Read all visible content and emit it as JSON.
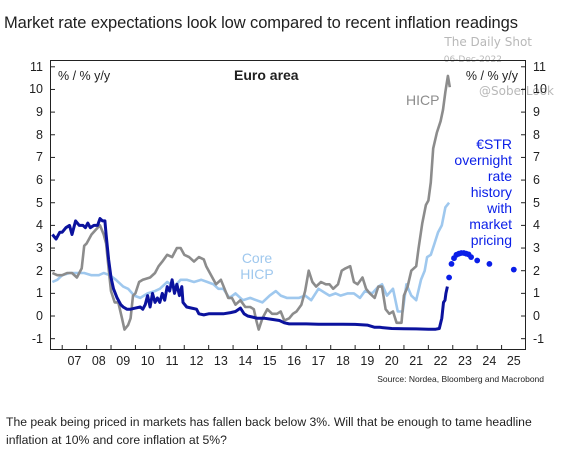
{
  "headline": "Market rate expectations look low compared to recent inflation readings",
  "watermark": {
    "site": "The Daily Shot",
    "date": "06-Dec-2022",
    "handle": "@SoberLook"
  },
  "source": "Source: Nordea, Bloomberg and Macrobond",
  "footer": "The peak being priced in markets has fallen back below 3%. Will that be enough to tame headline inflation at 10% and core inflation at 5%?",
  "colors": {
    "hicp": "#8c8c8c",
    "core": "#9fc8ee",
    "estr": "#0b129e",
    "pricing": "#0a1ee8",
    "text": "#1f1f1f"
  },
  "chart_data": {
    "type": "line",
    "title": "Euro area",
    "left_axis_label": "% / % y/y",
    "right_axis_label": "% / % y/y",
    "ylim": [
      -1.5,
      11.3
    ],
    "y_ticks": [
      -1,
      0,
      1,
      2,
      3,
      4,
      5,
      6,
      7,
      8,
      9,
      10,
      11
    ],
    "xlim": [
      2006.5,
      2026.0
    ],
    "x_ticks": [
      "07",
      "08",
      "09",
      "10",
      "11",
      "12",
      "13",
      "14",
      "15",
      "16",
      "17",
      "18",
      "19",
      "20",
      "21",
      "22",
      "23",
      "24",
      "25"
    ],
    "grid": false,
    "annotations": [
      {
        "series": "HICP",
        "text": "HICP",
        "color": "#8c8c8c"
      },
      {
        "series": "Core HICP",
        "lines": [
          "Core",
          "HICP"
        ],
        "color": "#9fc8ee"
      },
      {
        "series": "€STR",
        "lines": [
          "€STR",
          "overnight",
          "rate",
          "history",
          "with",
          "market",
          "pricing"
        ],
        "color": "#0a1ee8"
      }
    ],
    "series": [
      {
        "name": "HICP",
        "points": [
          [
            2006.6,
            1.9
          ],
          [
            2006.8,
            1.8
          ],
          [
            2007.0,
            1.8
          ],
          [
            2007.2,
            1.9
          ],
          [
            2007.4,
            1.9
          ],
          [
            2007.6,
            1.7
          ],
          [
            2007.8,
            2.1
          ],
          [
            2007.9,
            3.1
          ],
          [
            2008.0,
            3.2
          ],
          [
            2008.2,
            3.6
          ],
          [
            2008.45,
            3.9
          ],
          [
            2008.55,
            4.0
          ],
          [
            2008.7,
            3.6
          ],
          [
            2008.8,
            3.2
          ],
          [
            2008.9,
            2.1
          ],
          [
            2009.0,
            1.1
          ],
          [
            2009.15,
            0.6
          ],
          [
            2009.3,
            0.6
          ],
          [
            2009.45,
            -0.1
          ],
          [
            2009.55,
            -0.6
          ],
          [
            2009.7,
            -0.4
          ],
          [
            2009.8,
            -0.1
          ],
          [
            2009.9,
            0.9
          ],
          [
            2010.0,
            1.0
          ],
          [
            2010.15,
            1.5
          ],
          [
            2010.3,
            1.6
          ],
          [
            2010.6,
            1.7
          ],
          [
            2010.8,
            1.9
          ],
          [
            2010.95,
            2.2
          ],
          [
            2011.1,
            2.4
          ],
          [
            2011.3,
            2.7
          ],
          [
            2011.5,
            2.6
          ],
          [
            2011.7,
            3.0
          ],
          [
            2011.85,
            3.0
          ],
          [
            2012.0,
            2.7
          ],
          [
            2012.2,
            2.6
          ],
          [
            2012.4,
            2.4
          ],
          [
            2012.6,
            2.6
          ],
          [
            2012.8,
            2.5
          ],
          [
            2012.9,
            2.2
          ],
          [
            2013.1,
            1.8
          ],
          [
            2013.3,
            1.4
          ],
          [
            2013.5,
            1.6
          ],
          [
            2013.8,
            0.8
          ],
          [
            2013.95,
            0.8
          ],
          [
            2014.1,
            0.5
          ],
          [
            2014.3,
            0.7
          ],
          [
            2014.5,
            0.4
          ],
          [
            2014.7,
            0.4
          ],
          [
            2014.85,
            0.3
          ],
          [
            2014.95,
            -0.2
          ],
          [
            2015.05,
            -0.6
          ],
          [
            2015.2,
            -0.1
          ],
          [
            2015.4,
            0.3
          ],
          [
            2015.6,
            0.1
          ],
          [
            2015.8,
            0.1
          ],
          [
            2015.95,
            0.2
          ],
          [
            2016.1,
            -0.2
          ],
          [
            2016.3,
            -0.1
          ],
          [
            2016.45,
            0.1
          ],
          [
            2016.6,
            0.2
          ],
          [
            2016.8,
            0.5
          ],
          [
            2016.95,
            1.1
          ],
          [
            2017.1,
            2.0
          ],
          [
            2017.25,
            1.5
          ],
          [
            2017.4,
            1.3
          ],
          [
            2017.6,
            1.5
          ],
          [
            2017.8,
            1.4
          ],
          [
            2017.95,
            1.4
          ],
          [
            2018.1,
            1.2
          ],
          [
            2018.3,
            1.4
          ],
          [
            2018.45,
            2.0
          ],
          [
            2018.6,
            2.1
          ],
          [
            2018.8,
            2.2
          ],
          [
            2018.95,
            1.5
          ],
          [
            2019.1,
            1.4
          ],
          [
            2019.3,
            1.7
          ],
          [
            2019.45,
            1.2
          ],
          [
            2019.6,
            1.0
          ],
          [
            2019.8,
            0.8
          ],
          [
            2019.95,
            1.3
          ],
          [
            2020.1,
            1.3
          ],
          [
            2020.25,
            0.3
          ],
          [
            2020.4,
            0.1
          ],
          [
            2020.55,
            0.2
          ],
          [
            2020.7,
            -0.3
          ],
          [
            2020.9,
            -0.3
          ],
          [
            2021.0,
            0.9
          ],
          [
            2021.15,
            1.3
          ],
          [
            2021.3,
            2.0
          ],
          [
            2021.5,
            2.2
          ],
          [
            2021.6,
            3.0
          ],
          [
            2021.75,
            4.1
          ],
          [
            2021.9,
            4.9
          ],
          [
            2022.0,
            5.1
          ],
          [
            2022.1,
            5.9
          ],
          [
            2022.2,
            7.4
          ],
          [
            2022.35,
            8.1
          ],
          [
            2022.5,
            8.6
          ],
          [
            2022.6,
            9.1
          ],
          [
            2022.7,
            9.9
          ],
          [
            2022.8,
            10.6
          ],
          [
            2022.88,
            10.1
          ]
        ]
      },
      {
        "name": "Core HICP",
        "points": [
          [
            2006.6,
            1.5
          ],
          [
            2006.8,
            1.6
          ],
          [
            2007.0,
            1.8
          ],
          [
            2007.3,
            1.9
          ],
          [
            2007.6,
            1.9
          ],
          [
            2007.9,
            1.9
          ],
          [
            2008.2,
            1.8
          ],
          [
            2008.5,
            1.8
          ],
          [
            2008.7,
            1.9
          ],
          [
            2008.95,
            1.8
          ],
          [
            2009.2,
            1.6
          ],
          [
            2009.5,
            1.3
          ],
          [
            2009.7,
            1.2
          ],
          [
            2009.95,
            0.9
          ],
          [
            2010.2,
            0.8
          ],
          [
            2010.5,
            1.0
          ],
          [
            2010.8,
            1.1
          ],
          [
            2011.0,
            1.2
          ],
          [
            2011.3,
            1.5
          ],
          [
            2011.6,
            1.3
          ],
          [
            2011.85,
            1.6
          ],
          [
            2012.1,
            1.6
          ],
          [
            2012.4,
            1.5
          ],
          [
            2012.7,
            1.6
          ],
          [
            2012.95,
            1.5
          ],
          [
            2013.2,
            1.4
          ],
          [
            2013.4,
            1.2
          ],
          [
            2013.6,
            1.2
          ],
          [
            2013.85,
            0.8
          ],
          [
            2014.1,
            1.0
          ],
          [
            2014.4,
            0.7
          ],
          [
            2014.7,
            0.8
          ],
          [
            2014.95,
            0.7
          ],
          [
            2015.2,
            0.6
          ],
          [
            2015.5,
            0.9
          ],
          [
            2015.75,
            1.1
          ],
          [
            2015.95,
            0.9
          ],
          [
            2016.2,
            0.8
          ],
          [
            2016.5,
            0.8
          ],
          [
            2016.7,
            0.8
          ],
          [
            2016.95,
            0.9
          ],
          [
            2017.2,
            0.7
          ],
          [
            2017.5,
            1.2
          ],
          [
            2017.8,
            1.0
          ],
          [
            2017.95,
            0.9
          ],
          [
            2018.2,
            1.0
          ],
          [
            2018.4,
            0.9
          ],
          [
            2018.7,
            1.0
          ],
          [
            2018.95,
            1.0
          ],
          [
            2019.2,
            0.8
          ],
          [
            2019.4,
            1.1
          ],
          [
            2019.7,
            1.0
          ],
          [
            2019.95,
            1.3
          ],
          [
            2020.1,
            1.4
          ],
          [
            2020.3,
            0.9
          ],
          [
            2020.55,
            1.2
          ],
          [
            2020.75,
            0.2
          ],
          [
            2020.95,
            0.2
          ],
          [
            2021.1,
            1.4
          ],
          [
            2021.3,
            0.9
          ],
          [
            2021.5,
            0.7
          ],
          [
            2021.7,
            1.6
          ],
          [
            2021.85,
            2.0
          ],
          [
            2021.95,
            2.6
          ],
          [
            2022.1,
            2.7
          ],
          [
            2022.25,
            3.2
          ],
          [
            2022.4,
            3.7
          ],
          [
            2022.55,
            4.0
          ],
          [
            2022.7,
            4.8
          ],
          [
            2022.85,
            5.0
          ]
        ]
      },
      {
        "name": "€STR history",
        "points": [
          [
            2006.6,
            3.6
          ],
          [
            2006.75,
            3.4
          ],
          [
            2006.9,
            3.7
          ],
          [
            2007.0,
            3.7
          ],
          [
            2007.15,
            3.9
          ],
          [
            2007.3,
            4.0
          ],
          [
            2007.4,
            3.6
          ],
          [
            2007.55,
            4.2
          ],
          [
            2007.7,
            4.0
          ],
          [
            2007.85,
            4.0
          ],
          [
            2007.95,
            3.9
          ],
          [
            2008.05,
            4.1
          ],
          [
            2008.15,
            3.9
          ],
          [
            2008.3,
            4.0
          ],
          [
            2008.45,
            4.0
          ],
          [
            2008.55,
            4.3
          ],
          [
            2008.65,
            4.2
          ],
          [
            2008.75,
            4.2
          ],
          [
            2008.8,
            3.6
          ],
          [
            2008.9,
            2.5
          ],
          [
            2009.0,
            1.7
          ],
          [
            2009.1,
            1.2
          ],
          [
            2009.25,
            0.8
          ],
          [
            2009.4,
            0.5
          ],
          [
            2009.5,
            0.4
          ],
          [
            2009.65,
            0.3
          ],
          [
            2009.8,
            0.3
          ],
          [
            2010.0,
            0.35
          ],
          [
            2010.2,
            0.4
          ],
          [
            2010.3,
            0.3
          ],
          [
            2010.4,
            0.5
          ],
          [
            2010.5,
            0.9
          ],
          [
            2010.6,
            0.4
          ],
          [
            2010.7,
            1.0
          ],
          [
            2010.8,
            0.6
          ],
          [
            2010.9,
            0.8
          ],
          [
            2011.0,
            0.6
          ],
          [
            2011.1,
            1.0
          ],
          [
            2011.2,
            0.7
          ],
          [
            2011.3,
            1.3
          ],
          [
            2011.4,
            1.1
          ],
          [
            2011.5,
            1.6
          ],
          [
            2011.6,
            1.0
          ],
          [
            2011.7,
            1.4
          ],
          [
            2011.8,
            0.9
          ],
          [
            2011.9,
            1.3
          ],
          [
            2011.95,
            0.6
          ],
          [
            2012.1,
            0.4
          ],
          [
            2012.3,
            0.35
          ],
          [
            2012.5,
            0.3
          ],
          [
            2012.6,
            0.1
          ],
          [
            2012.8,
            0.05
          ],
          [
            2013.0,
            0.1
          ],
          [
            2013.3,
            0.1
          ],
          [
            2013.6,
            0.1
          ],
          [
            2013.9,
            0.15
          ],
          [
            2014.1,
            0.2
          ],
          [
            2014.3,
            0.35
          ],
          [
            2014.45,
            0.1
          ],
          [
            2014.6,
            0.0
          ],
          [
            2014.8,
            -0.05
          ],
          [
            2015.0,
            -0.1
          ],
          [
            2015.3,
            -0.1
          ],
          [
            2015.6,
            -0.15
          ],
          [
            2015.9,
            -0.2
          ],
          [
            2016.1,
            -0.3
          ],
          [
            2016.3,
            -0.35
          ],
          [
            2016.6,
            -0.35
          ],
          [
            2017.0,
            -0.35
          ],
          [
            2017.5,
            -0.36
          ],
          [
            2018.0,
            -0.36
          ],
          [
            2018.5,
            -0.36
          ],
          [
            2019.0,
            -0.37
          ],
          [
            2019.5,
            -0.4
          ],
          [
            2019.8,
            -0.5
          ],
          [
            2020.0,
            -0.5
          ],
          [
            2020.5,
            -0.55
          ],
          [
            2021.0,
            -0.56
          ],
          [
            2021.5,
            -0.57
          ],
          [
            2022.0,
            -0.58
          ],
          [
            2022.3,
            -0.58
          ],
          [
            2022.45,
            -0.55
          ],
          [
            2022.55,
            -0.1
          ],
          [
            2022.62,
            0.6
          ],
          [
            2022.68,
            0.7
          ],
          [
            2022.72,
            1.0
          ],
          [
            2022.78,
            1.3
          ]
        ]
      },
      {
        "name": "€STR market pricing",
        "points": [
          [
            2022.85,
            1.7
          ],
          [
            2022.95,
            2.3
          ],
          [
            2023.05,
            2.55
          ],
          [
            2023.15,
            2.7
          ],
          [
            2023.25,
            2.75
          ],
          [
            2023.35,
            2.78
          ],
          [
            2023.45,
            2.78
          ],
          [
            2023.55,
            2.75
          ],
          [
            2023.65,
            2.72
          ],
          [
            2023.75,
            2.6
          ],
          [
            2024.0,
            2.45
          ],
          [
            2024.5,
            2.3
          ],
          [
            2025.5,
            2.05
          ]
        ]
      }
    ]
  }
}
